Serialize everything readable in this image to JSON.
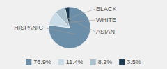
{
  "chart_data": {
    "type": "pie",
    "categories": [
      "HISPANIC",
      "WHITE",
      "BLACK",
      "ASIAN"
    ],
    "values": [
      76.9,
      11.4,
      8.2,
      3.5
    ],
    "value_labels": [
      "76.9%",
      "11.4%",
      "8.2%",
      "3.5%"
    ],
    "colors": [
      "#6b8fa8",
      "#c9dce8",
      "#a8bfcc",
      "#1c3a52"
    ],
    "legend": "bottom"
  }
}
